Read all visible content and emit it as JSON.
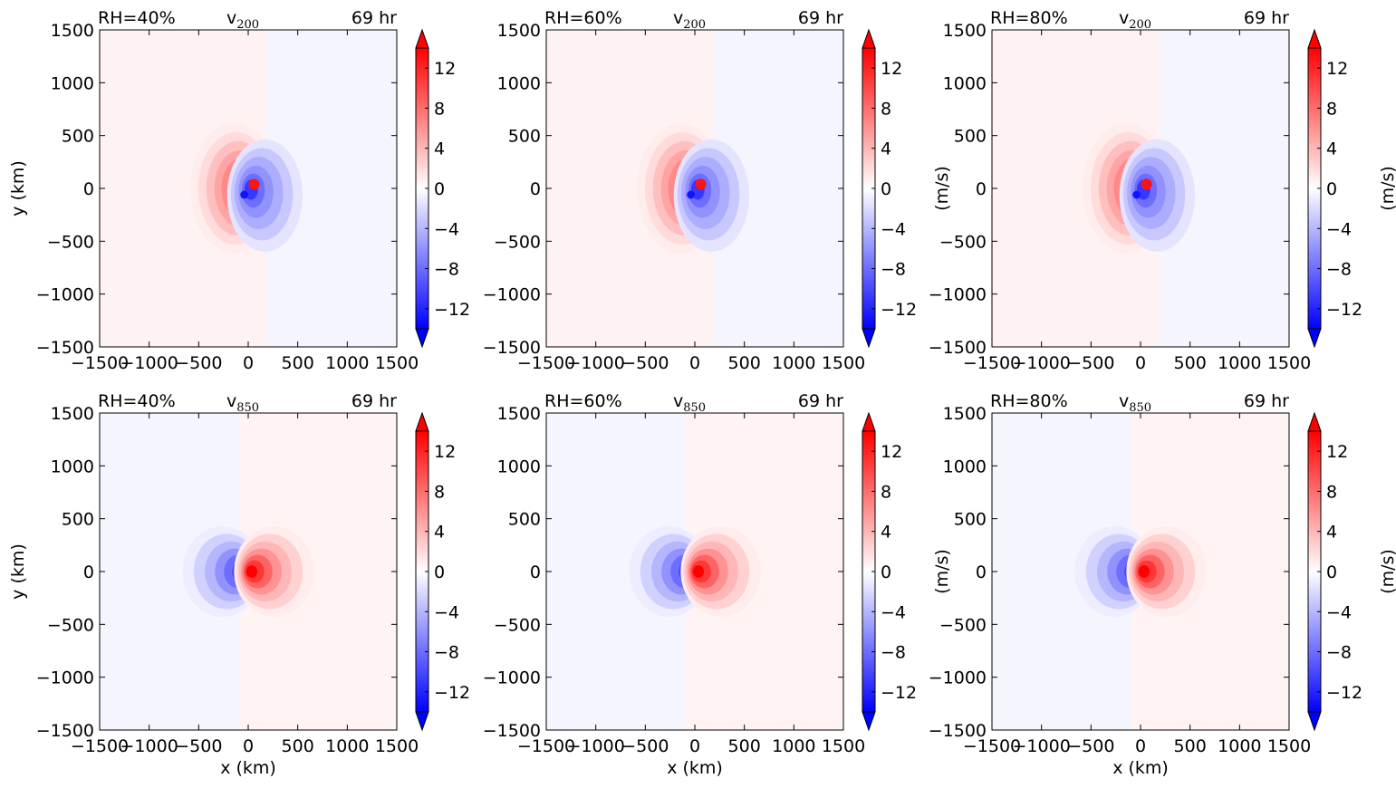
{
  "figure": {
    "colorbar_label": "(m/s)",
    "colorbar_ticks": [
      -12,
      -8,
      -4,
      0,
      4,
      8,
      12
    ],
    "colorbar_range": [
      -14,
      14
    ],
    "colormap": {
      "negative": "#0000ff",
      "zero": "#ffffff",
      "positive": "#ff0000"
    }
  },
  "chart_data": [
    {
      "type": "heatmap",
      "panel": "r1c1",
      "title_left": "RH=40%",
      "title_center_base": "v",
      "title_center_sub": "200",
      "title_right": "69 hr",
      "xlabel": "",
      "ylabel": "y (km)",
      "xlim": [
        -1500,
        1500
      ],
      "ylim": [
        -1500,
        1500
      ],
      "xticks": [
        -1500,
        -1000,
        -500,
        0,
        500,
        1000,
        1500
      ],
      "yticks": [
        -1500,
        -1000,
        -500,
        0,
        500,
        1000,
        1500
      ],
      "colorbar_label": "",
      "level": 200
    },
    {
      "type": "heatmap",
      "panel": "r1c2",
      "title_left": "RH=60%",
      "title_center_base": "v",
      "title_center_sub": "200",
      "title_right": "69 hr",
      "xlabel": "",
      "ylabel": "",
      "xlim": [
        -1500,
        1500
      ],
      "ylim": [
        -1500,
        1500
      ],
      "xticks": [
        -1500,
        -1000,
        -500,
        0,
        500,
        1000,
        1500
      ],
      "yticks": [
        -1500,
        -1000,
        -500,
        0,
        500,
        1000,
        1500
      ],
      "colorbar_label": "(m/s)",
      "level": 200
    },
    {
      "type": "heatmap",
      "panel": "r1c3",
      "title_left": "RH=80%",
      "title_center_base": "v",
      "title_center_sub": "200",
      "title_right": "69 hr",
      "xlabel": "",
      "ylabel": "",
      "xlim": [
        -1500,
        1500
      ],
      "ylim": [
        -1500,
        1500
      ],
      "xticks": [
        -1500,
        -1000,
        -500,
        0,
        500,
        1000,
        1500
      ],
      "yticks": [
        -1500,
        -1000,
        -500,
        0,
        500,
        1000,
        1500
      ],
      "colorbar_label": "(m/s)",
      "level": 200
    },
    {
      "type": "heatmap",
      "panel": "r2c1",
      "title_left": "RH=40%",
      "title_center_base": "v",
      "title_center_sub": "850",
      "title_right": "69 hr",
      "xlabel": "x (km)",
      "ylabel": "y (km)",
      "xlim": [
        -1500,
        1500
      ],
      "ylim": [
        -1500,
        1500
      ],
      "xticks": [
        -1500,
        -1000,
        -500,
        0,
        500,
        1000,
        1500
      ],
      "yticks": [
        -1500,
        -1000,
        -500,
        0,
        500,
        1000,
        1500
      ],
      "colorbar_label": "",
      "level": 850
    },
    {
      "type": "heatmap",
      "panel": "r2c2",
      "title_left": "RH=60%",
      "title_center_base": "v",
      "title_center_sub": "850",
      "title_right": "69 hr",
      "xlabel": "x (km)",
      "ylabel": "",
      "xlim": [
        -1500,
        1500
      ],
      "ylim": [
        -1500,
        1500
      ],
      "xticks": [
        -1500,
        -1000,
        -500,
        0,
        500,
        1000,
        1500
      ],
      "yticks": [
        -1500,
        -1000,
        -500,
        0,
        500,
        1000,
        1500
      ],
      "colorbar_label": "(m/s)",
      "level": 850
    },
    {
      "type": "heatmap",
      "panel": "r2c3",
      "title_left": "RH=80%",
      "title_center_base": "v",
      "title_center_sub": "850",
      "title_right": "69 hr",
      "xlabel": "x (km)",
      "ylabel": "",
      "xlim": [
        -1500,
        1500
      ],
      "ylim": [
        -1500,
        1500
      ],
      "xticks": [
        -1500,
        -1000,
        -500,
        0,
        500,
        1000,
        1500
      ],
      "yticks": [
        -1500,
        -1000,
        -500,
        0,
        500,
        1000,
        1500
      ],
      "colorbar_label": "(m/s)",
      "level": 850
    }
  ]
}
